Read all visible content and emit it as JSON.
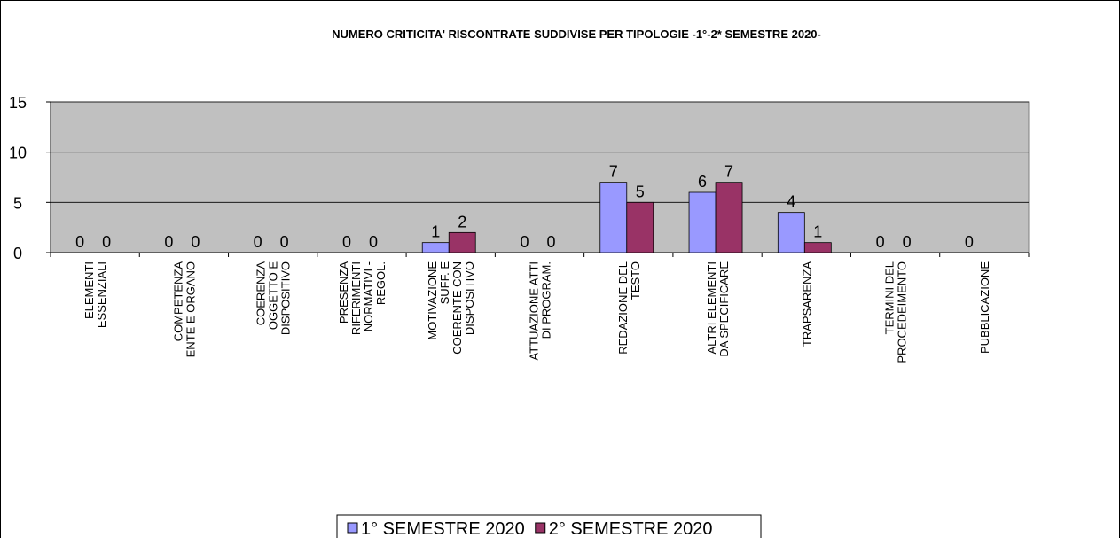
{
  "chart_data": {
    "type": "bar",
    "title": "NUMERO CRITICITA' RISCONTRATE SUDDIVISE PER TIPOLOGIE -1°-2* SEMESTRE 2020-",
    "categories": [
      "ELEMENTI\nESSENZIALI",
      "COMPETENZA\nENTE E ORGANO",
      "COERENZA\nOGGETTO E\nDISPOSITIVO",
      "PRESENZA\nRIFERIMENTI\nNORMATIVI -\nREGOL.",
      "MOTIVAZIONE\nSUFF. E\nCOERENTE CON\nDISPOSITIVO",
      "ATTUAZIONE ATTI\nDI PROGRAM.",
      "REDAZIONE  DEL\nTESTO",
      "ALTRI  ELEMENTI\nDA SPECIFICARE",
      "TRAPSARENZA",
      "TERMINI DEL\nPROCEDEIMENTO",
      "PUBBLICAZIONE"
    ],
    "series": [
      {
        "name": "1° SEMESTRE 2020",
        "color": "#9999ff",
        "values": [
          0,
          0,
          0,
          0,
          1,
          0,
          7,
          6,
          4,
          0,
          0
        ]
      },
      {
        "name": "2° SEMESTRE 2020",
        "color": "#993366",
        "values": [
          0,
          0,
          0,
          0,
          2,
          0,
          5,
          7,
          1,
          0,
          null
        ]
      }
    ],
    "ylim": [
      0,
      15
    ],
    "yticks": [
      0,
      5,
      10,
      15
    ],
    "grid": true,
    "legend": "bottom"
  }
}
